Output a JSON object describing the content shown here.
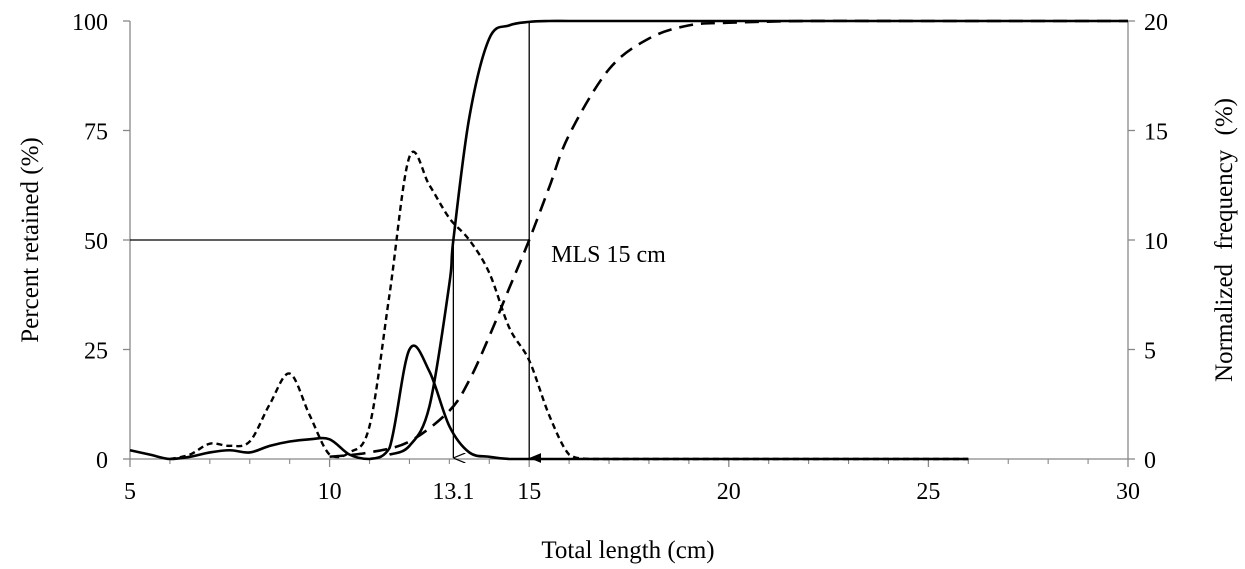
{
  "chart_data": {
    "type": "line",
    "title": "",
    "xlabel": "Total length (cm)",
    "ylabel": "Percent retained (%)",
    "y2label": "Normalized frequency (%)",
    "xlim": [
      5,
      30
    ],
    "ylim": [
      0,
      100
    ],
    "y2lim": [
      0,
      20
    ],
    "x_ticks": [
      5,
      10,
      15,
      20,
      25,
      30
    ],
    "x_extra_ticks": [
      13.1
    ],
    "y_ticks": [
      0,
      25,
      50,
      75,
      100
    ],
    "y2_ticks": [
      0,
      5,
      10,
      15,
      20
    ],
    "grid": false,
    "legend": "none",
    "annotations": [
      {
        "text": "MLS 15 cm",
        "x": 15.55,
        "y": 45
      }
    ],
    "reference_lines": {
      "l50_level": 50,
      "l50_small": 13.1,
      "mls": 15
    },
    "series": [
      {
        "style": "solid-bold",
        "axis": "y",
        "x": [
          11.5,
          12,
          12.5,
          13,
          13.1,
          13.5,
          14,
          14.5,
          15,
          15.5,
          16,
          17,
          20,
          25,
          30
        ],
        "y": [
          1,
          3,
          12,
          40,
          50,
          78,
          96,
          99,
          99.8,
          100,
          100,
          100,
          100,
          100,
          100
        ]
      },
      {
        "style": "dashed",
        "axis": "y",
        "x": [
          10,
          11,
          12,
          13,
          13.5,
          14,
          14.5,
          15,
          15.5,
          16,
          17,
          18,
          19,
          20,
          22,
          25,
          30
        ],
        "y": [
          0.5,
          1.5,
          4,
          11,
          18,
          28,
          39,
          50,
          62,
          74,
          89,
          96,
          99,
          99.6,
          100,
          100,
          100
        ]
      },
      {
        "style": "dotted-dash",
        "axis": "y2",
        "x": [
          6,
          6.5,
          7,
          7.5,
          8,
          8.5,
          9,
          9.5,
          10,
          10.5,
          11,
          11.5,
          12,
          12.5,
          13,
          13.5,
          14,
          14.5,
          15,
          15.5,
          16,
          16.5,
          17,
          20,
          26
        ],
        "y": [
          0,
          0.2,
          0.7,
          0.6,
          0.8,
          2.5,
          3.9,
          2.0,
          0.2,
          0.3,
          1.5,
          7.5,
          13.8,
          12.5,
          11.0,
          10.0,
          8.5,
          6.0,
          4.5,
          2.0,
          0.2,
          0,
          0,
          0,
          0
        ]
      },
      {
        "style": "solid",
        "axis": "y2",
        "x": [
          5,
          5.5,
          6,
          6.5,
          7,
          7.5,
          8,
          8.5,
          9,
          9.5,
          10,
          10.5,
          11,
          11.5,
          12,
          12.5,
          13,
          13.5,
          14,
          14.5,
          15,
          16,
          20,
          26
        ],
        "y": [
          0.4,
          0.2,
          0,
          0.1,
          0.3,
          0.4,
          0.3,
          0.6,
          0.8,
          0.9,
          0.9,
          0.2,
          0,
          0.5,
          5.0,
          4.0,
          1.5,
          0.3,
          0.1,
          0,
          0,
          0,
          0,
          0
        ]
      }
    ]
  }
}
